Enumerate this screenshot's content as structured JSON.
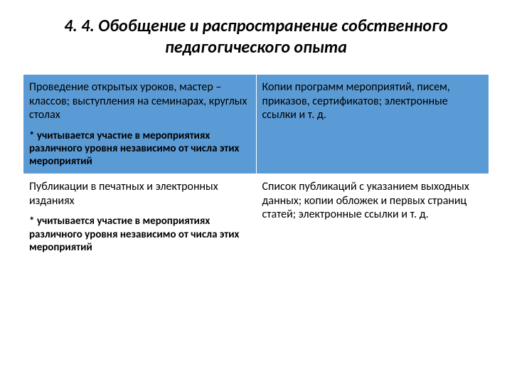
{
  "title": "4. 4. Обобщение и распространение собственного педагогического опыта",
  "table": {
    "header_bg": "#5b9bd5",
    "border_color": "#ffffff",
    "rows": [
      {
        "shaded": true,
        "left_main": "Проведение открытых уроков, мастер – классов; выступления на семинарах, круглых столах",
        "left_note": "* учитывается участие в мероприятиях различного уровня независимо от числа этих мероприятий",
        "right_main": "Копии программ мероприятий, писем, приказов, сертификатов; электронные ссылки и т. д."
      },
      {
        "shaded": false,
        "left_main": "Публикации в печатных и электронных изданиях",
        "left_note": "* учитывается участие в мероприятиях различного уровня независимо от числа этих мероприятий",
        "right_main": "Список публикаций с указанием выходных данных; копии обложек и первых страниц статей; электронные ссылки и т. д."
      }
    ]
  }
}
